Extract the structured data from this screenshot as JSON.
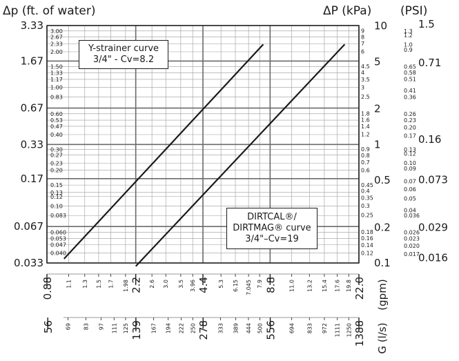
{
  "chart_data": {
    "type": "line",
    "title": "",
    "header_left": "Δp (ft. of water)",
    "header_kpa": "ΔP (kPa)",
    "header_psi": "(PSI)",
    "xlabel_gpm": "(gpm)",
    "xlabel_ls": "G (l/s)",
    "x_scale": "log",
    "y_scale": "log",
    "grid": true,
    "xlim_gpm": [
      0.88,
      22.0
    ],
    "ylim_ft": [
      0.033,
      3.33
    ],
    "ylim_kpa": [
      0.1,
      10
    ],
    "ylim_psi": [
      0.016,
      1.5
    ],
    "y_major_ft": [
      "3.33",
      "1.67",
      "0.67",
      "0.33",
      "0.17",
      "0.067",
      "0.033"
    ],
    "y_minor_ft": [
      "3.00",
      "2.67",
      "2.33",
      "2.00",
      "1.50",
      "1.33",
      "1.17",
      "1.00",
      "0.83",
      "0.60",
      "0.53",
      "0.47",
      "0.40",
      "0.30",
      "0.27",
      "0.23",
      "0.20",
      "0.15",
      "0.13",
      "0.12",
      "0.10",
      "0.083",
      "0.060",
      "0.053",
      "0.047",
      "0.040"
    ],
    "y_major_kpa": [
      "10",
      "5",
      "2",
      "1",
      "0.5",
      "0.2",
      "0.1"
    ],
    "y_minor_kpa": [
      "9",
      "8",
      "7",
      "6",
      "4.5",
      "4",
      "3.5",
      "3",
      "2.5",
      "1.8",
      "1.6",
      "1.4",
      "1.2",
      "0.9",
      "0.8",
      "0.7",
      "0.6",
      "0.45",
      "0.4",
      "0.35",
      "0.3",
      "0.25",
      "0.18",
      "0.16",
      "0.14",
      "0.12"
    ],
    "y_major_psi": [
      "1.5",
      "0.71",
      "0.16",
      "0.073",
      "0.029",
      "0.016"
    ],
    "y_minor_psi": [
      "1.3",
      "1.2",
      "1.0",
      "0.9",
      "0.65",
      "0.58",
      "0.51",
      "0.41",
      "0.36",
      "0.26",
      "0.23",
      "0.20",
      "0.17",
      "0.13",
      "0.12",
      "0.10",
      "0.09",
      "0.07",
      "0.06",
      "0.05",
      "0.04",
      "0.036",
      "0.026",
      "0.023",
      "0.020",
      "0.017"
    ],
    "x_major_gpm": [
      "0.88",
      "2.2",
      "4.4",
      "8.8",
      "22.0"
    ],
    "x_minor_gpm": [
      "1.1",
      "1.3",
      "1.5",
      "1.7",
      "1.98",
      "2.6",
      "3.0",
      "3.5",
      "3.96",
      "5.3",
      "6.15",
      "7.045",
      "7.9",
      "11.0",
      "13.2",
      "15.4",
      "17.6",
      "19.8"
    ],
    "x_major_ls": [
      "56",
      "139",
      "278",
      "556",
      "1388"
    ],
    "x_minor_ls": [
      "69",
      "83",
      "97",
      "111",
      "125",
      "167",
      "194",
      "222",
      "250",
      "333",
      "389",
      "444",
      "500",
      "694",
      "833",
      "972",
      "1111",
      "1250"
    ],
    "series": [
      {
        "name": "Y-strainer curve 3/4\" - Cv=8.2",
        "cv": 8.2,
        "x": [
          1.05,
          8.2
        ],
        "y": [
          0.0358,
          2.3094
        ]
      },
      {
        "name": "DIRTCAL®/DIRTMAG® curve 3/4\"–Cv=19",
        "cv": 19,
        "x": [
          2.2,
          19.0
        ],
        "y": [
          0.031,
          2.3094
        ]
      }
    ],
    "annotations": [
      {
        "lines": [
          "Y-strainer curve",
          "3/4\" - Cv=8.2"
        ]
      },
      {
        "lines": [
          "DIRTCAL®/",
          "DIRTMAG® curve",
          "3/4\"–Cv=19"
        ]
      }
    ]
  }
}
